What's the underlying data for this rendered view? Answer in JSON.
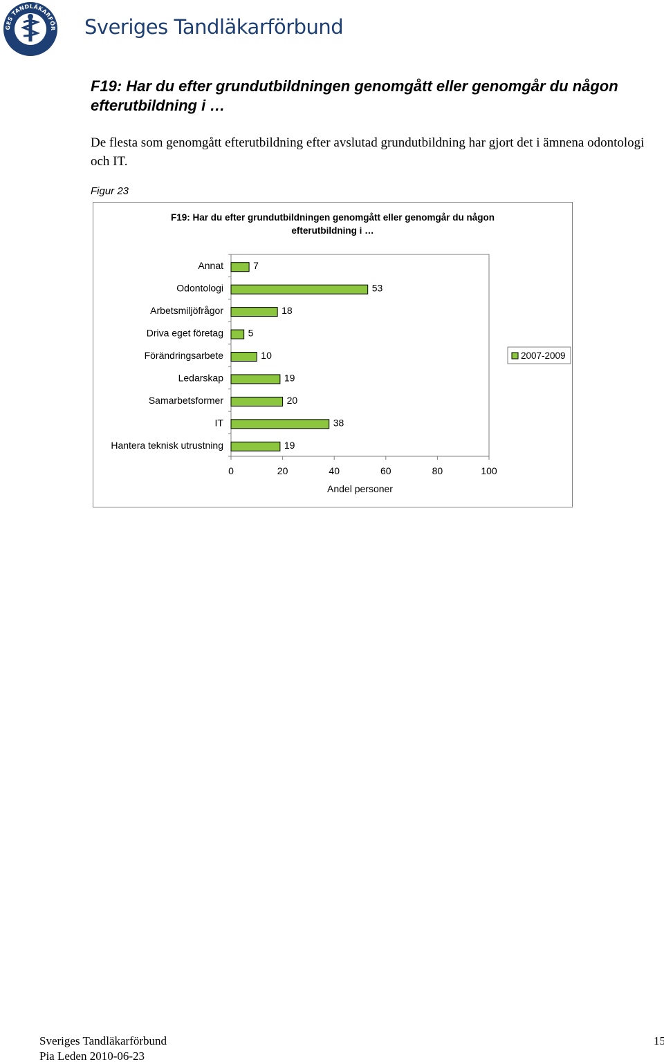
{
  "header": {
    "logo_text_top": "SVERIGES TANDLÄKARFÖRBUND",
    "logo_text_bottom": "SVERIGES TANDLÄKARFÖRBUND",
    "brand": "Sveriges Tandläkarförbund"
  },
  "section": {
    "heading": "F19: Har du efter grundutbildningen genomgått eller genomgår du någon efterutbildning i …",
    "paragraph": "De flesta som genomgått efterutbildning efter avslutad grundutbildning har gjort det i ämnena odontologi och IT.",
    "figure_caption": "Figur 23"
  },
  "chart_data": {
    "type": "bar",
    "orientation": "horizontal",
    "title_lines": [
      "F19: Har du efter grundutbildningen genomgått eller genomgår du någon",
      "efterutbildning i …"
    ],
    "categories": [
      "Annat",
      "Odontologi",
      "Arbetsmiljöfrågor",
      "Driva eget företag",
      "Förändringsarbete",
      "Ledarskap",
      "Samarbetsformer",
      "IT",
      "Hantera teknisk utrustning"
    ],
    "series": [
      {
        "name": "2007-2009",
        "values": [
          7,
          53,
          18,
          5,
          10,
          19,
          20,
          38,
          19
        ],
        "color": "#8cc63e"
      }
    ],
    "xlabel": "Andel personer",
    "xticks": [
      "0",
      "20",
      "40",
      "60",
      "80",
      "100"
    ],
    "xlim": [
      0,
      100
    ],
    "data_labels": true,
    "grid": false,
    "legend_position": "right"
  },
  "footer": {
    "org": "Sveriges Tandläkarförbund",
    "author_date": "Pia Leden 2010-06-23",
    "page_number": "15"
  }
}
